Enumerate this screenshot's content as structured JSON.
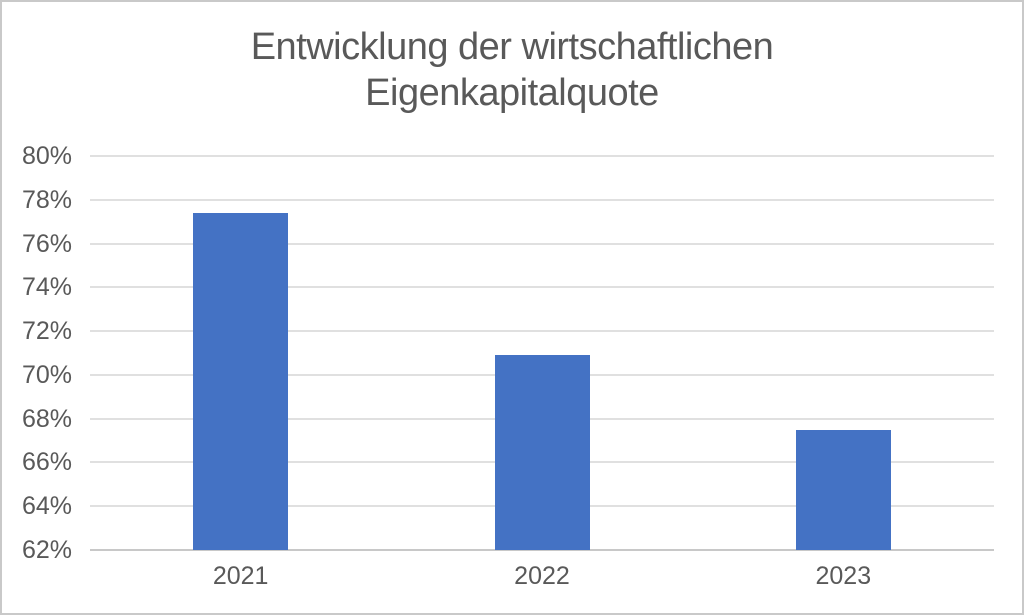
{
  "chart_data": {
    "type": "bar",
    "title": "Entwicklung der wirtschaftlichen Eigenkapitalquote",
    "title_lines": [
      "Entwicklung der wirtschaftlichen",
      "Eigenkapitalquote"
    ],
    "categories": [
      "2021",
      "2022",
      "2023"
    ],
    "values": [
      77.4,
      70.9,
      67.5
    ],
    "xlabel": "",
    "ylabel": "",
    "ylim": [
      62,
      80
    ],
    "ytick_step": 2,
    "ytick_labels": [
      "80%",
      "78%",
      "76%",
      "74%",
      "72%",
      "70%",
      "68%",
      "66%",
      "64%",
      "62%"
    ],
    "grid": true,
    "legend_position": "none",
    "colors": {
      "bar": "#4472C4",
      "gridline": "#E0E0E0",
      "axis_line": "#C8C8C8",
      "text": "#595959",
      "frame_border": "#C9C9C9",
      "background": "#FFFFFF"
    }
  }
}
